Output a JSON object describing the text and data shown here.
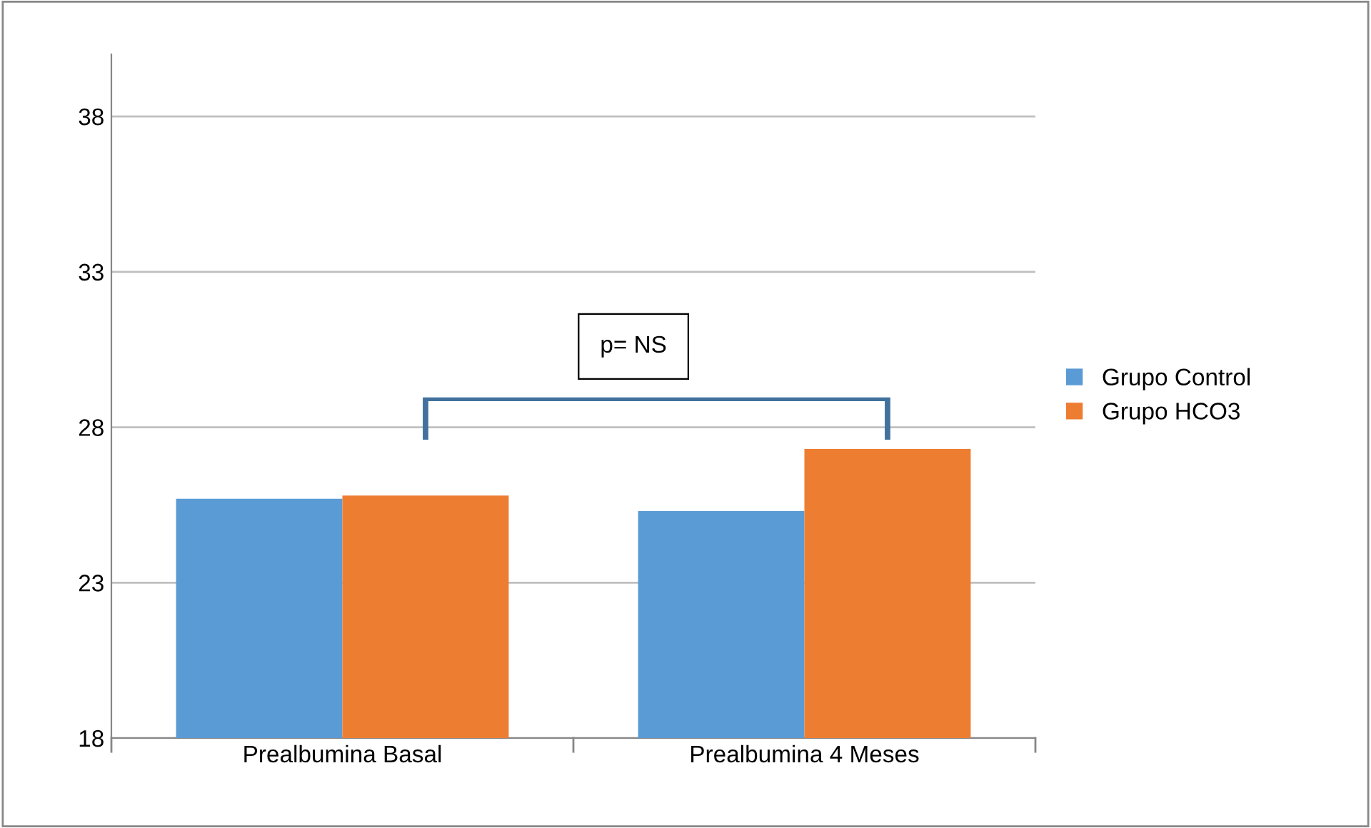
{
  "chart_data": {
    "type": "bar",
    "categories": [
      "Prealbumina Basal",
      "Prealbumina 4 Meses"
    ],
    "series": [
      {
        "name": "Grupo Control",
        "color": "#5b9bd5",
        "values": [
          25.7,
          25.3
        ]
      },
      {
        "name": "Grupo HCO3",
        "color": "#ed7d31",
        "values": [
          25.8,
          27.3
        ]
      }
    ],
    "ylim": [
      18,
      40
    ],
    "yticks": [
      18,
      23,
      28,
      33,
      38
    ],
    "grid": "y",
    "legend": "right",
    "annotations": [
      "p= NS"
    ]
  }
}
